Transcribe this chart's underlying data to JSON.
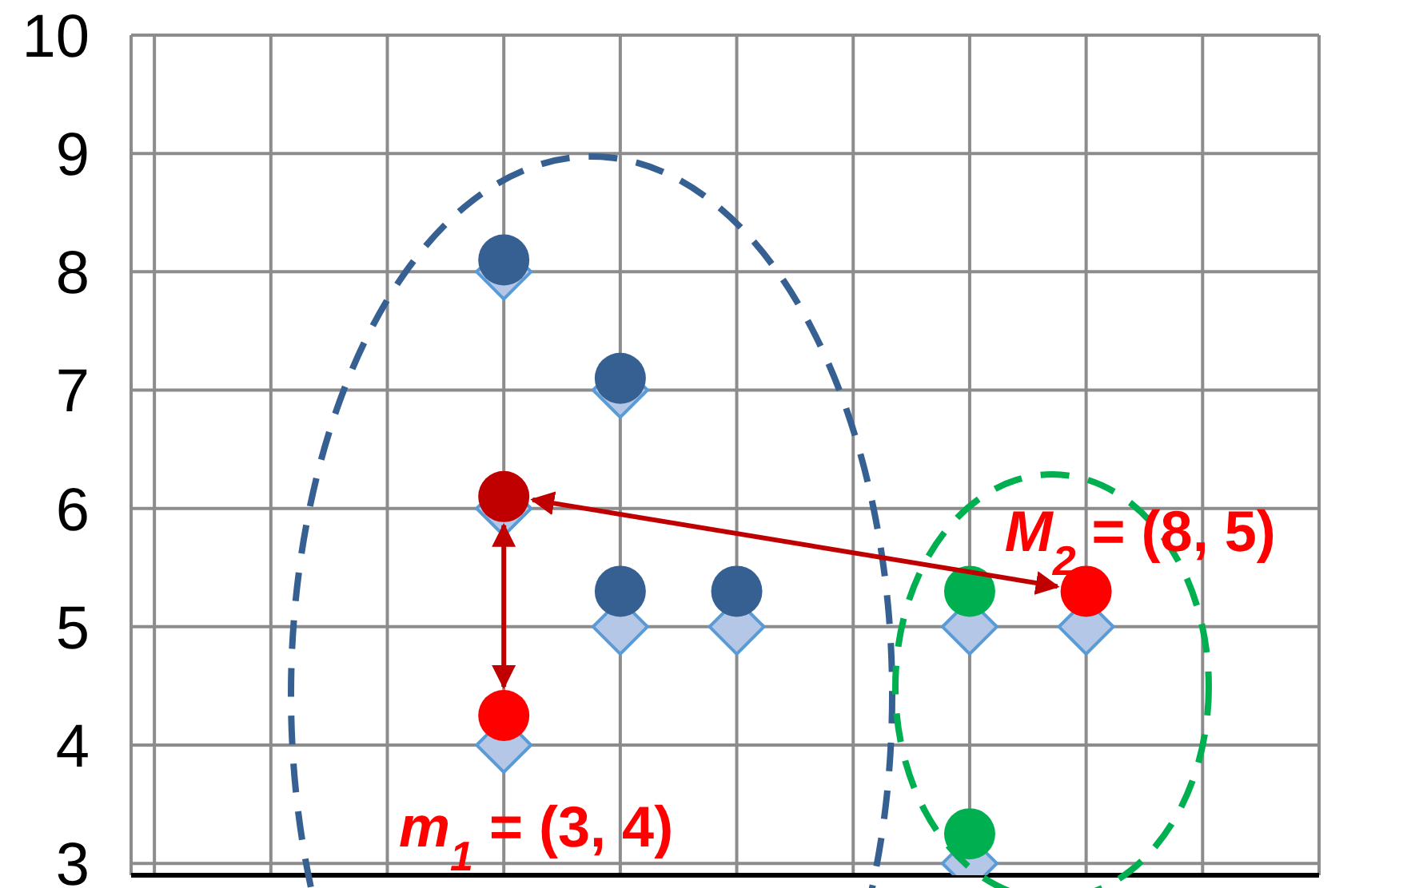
{
  "chart_data": {
    "type": "scatter",
    "categories": [
      null,
      null,
      null,
      null,
      null,
      null,
      null,
      null,
      null,
      null,
      null
    ],
    "ylim": [
      2.9,
      10
    ],
    "yticks": [
      3,
      4,
      5,
      6,
      7,
      8,
      9,
      10
    ],
    "grid": true,
    "tick_labels": "y",
    "series": [
      {
        "color": "#b4c7e7",
        "marker": "diamond",
        "values": [
          null,
          null,
          null,
          8,
          7,
          5,
          null,
          5,
          5,
          null,
          null
        ]
      },
      {
        "color": "#b4c7e7",
        "marker": "diamond",
        "values": [
          null,
          null,
          null,
          6,
          5,
          null,
          null,
          3,
          null,
          null,
          null
        ]
      },
      {
        "color": "#b4c7e7",
        "marker": "diamond",
        "values": [
          null,
          null,
          null,
          4,
          null,
          null,
          null,
          null,
          null,
          null,
          null
        ]
      },
      {
        "color": "#376092",
        "marker": "circle",
        "values": [
          null,
          null,
          null,
          8.1,
          7.1,
          5.3,
          null,
          null,
          null,
          null,
          null
        ]
      },
      {
        "color": "#376092",
        "marker": "circle",
        "values": [
          null,
          null,
          null,
          null,
          5.3,
          null,
          null,
          null,
          null,
          null,
          null
        ]
      },
      {
        "color": "#c00000",
        "marker": "circle",
        "values": [
          null,
          null,
          null,
          6.1,
          null,
          null,
          null,
          null,
          null,
          null,
          null
        ]
      },
      {
        "color": "#ff0000",
        "marker": "circle",
        "values": [
          null,
          null,
          null,
          4.25,
          null,
          null,
          null,
          null,
          5.3,
          null,
          null
        ]
      },
      {
        "color": "#00b050",
        "marker": "circle",
        "values": [
          null,
          null,
          null,
          null,
          null,
          null,
          null,
          5.3,
          null,
          null,
          null
        ]
      },
      {
        "color": "#00b050",
        "marker": "circle",
        "values": [
          null,
          null,
          null,
          null,
          null,
          null,
          null,
          3.25,
          null,
          null,
          null
        ]
      }
    ],
    "annotations": [
      "M$_{2}$ = (8, 5)",
      "m$_{1}$ = (3, 4)"
    ]
  }
}
